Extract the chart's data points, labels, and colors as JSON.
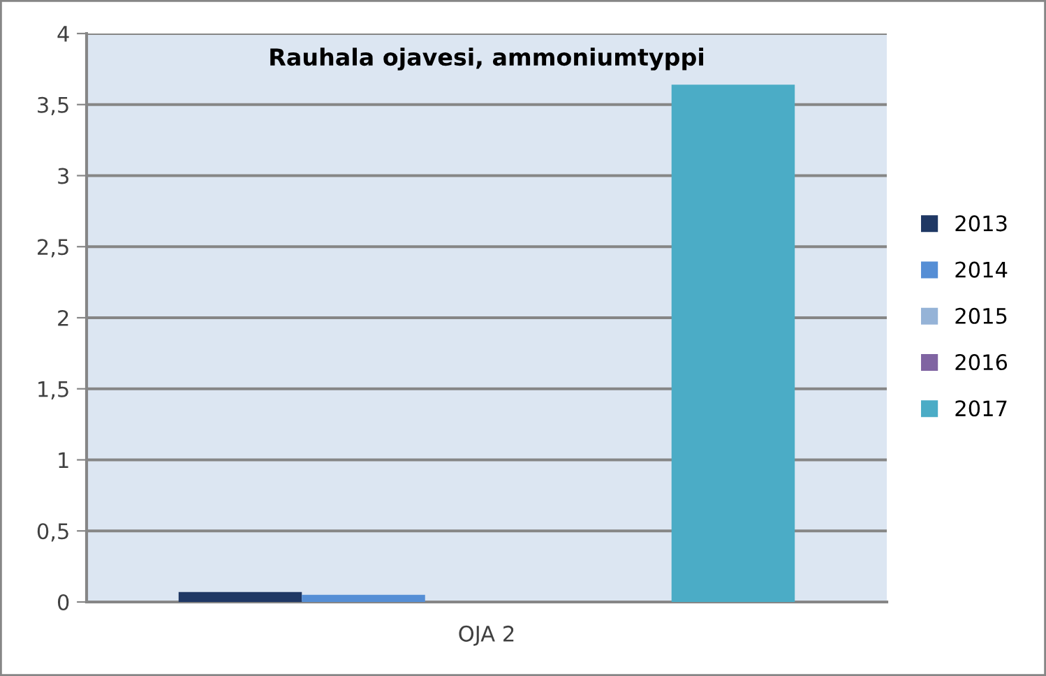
{
  "chart_data": {
    "type": "bar",
    "title": "Rauhala ojavesi, ammoniumtyppi",
    "categories": [
      "OJA 2"
    ],
    "series": [
      {
        "name": "2013",
        "color": "#1f3864",
        "values": [
          0.07
        ]
      },
      {
        "name": "2014",
        "color": "#558ed5",
        "values": [
          0.05
        ]
      },
      {
        "name": "2015",
        "color": "#95b3d7",
        "values": [
          null
        ]
      },
      {
        "name": "2016",
        "color": "#8064a2",
        "values": [
          null
        ]
      },
      {
        "name": "2017",
        "color": "#4bacc6",
        "values": [
          3.64
        ]
      }
    ],
    "ylim": [
      0,
      4
    ],
    "yticks": [
      0,
      {
        "value": 0.5,
        "label": "0,5"
      },
      1,
      {
        "value": 1.5,
        "label": "1,5"
      },
      2,
      {
        "value": 2.5,
        "label": "2,5"
      },
      3,
      {
        "value": 3.5,
        "label": "3,5"
      },
      4
    ],
    "grid": "y",
    "legend": "right"
  }
}
